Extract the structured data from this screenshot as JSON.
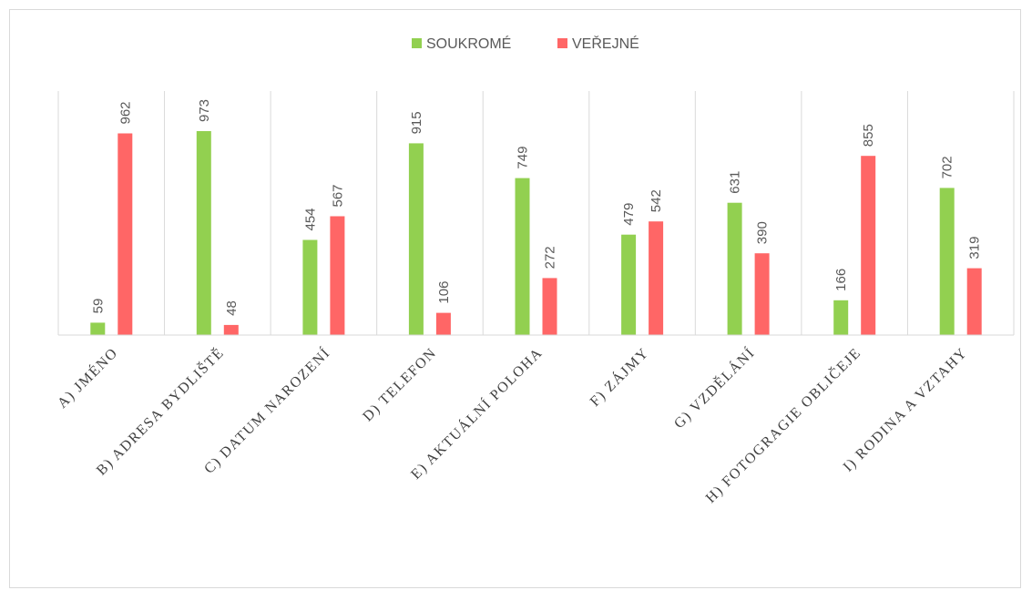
{
  "chart_data": {
    "type": "bar",
    "categories": [
      "A) JMÉNO",
      "B) ADRESA BYDLIŠTĚ",
      "C) DATUM NAROZENÍ",
      "D) TELEFON",
      "E) AKTUÁLNÍ POLOHA",
      "F) ZÁJMY",
      "G) VZDĚLÁNÍ",
      "H) FOTOGRAGIE OBLIČEJE",
      "I) RODINA A VZTAHY"
    ],
    "series": [
      {
        "name": "SOUKROMÉ",
        "color": "#92d050",
        "values": [
          59,
          973,
          454,
          915,
          749,
          479,
          631,
          166,
          702
        ]
      },
      {
        "name": "VEŘEJNÉ",
        "color": "#ff6666",
        "values": [
          962,
          48,
          567,
          106,
          272,
          542,
          390,
          855,
          319
        ]
      }
    ],
    "ylim": [
      0,
      1000
    ],
    "legend": "top",
    "grid": "vertical category separators"
  }
}
